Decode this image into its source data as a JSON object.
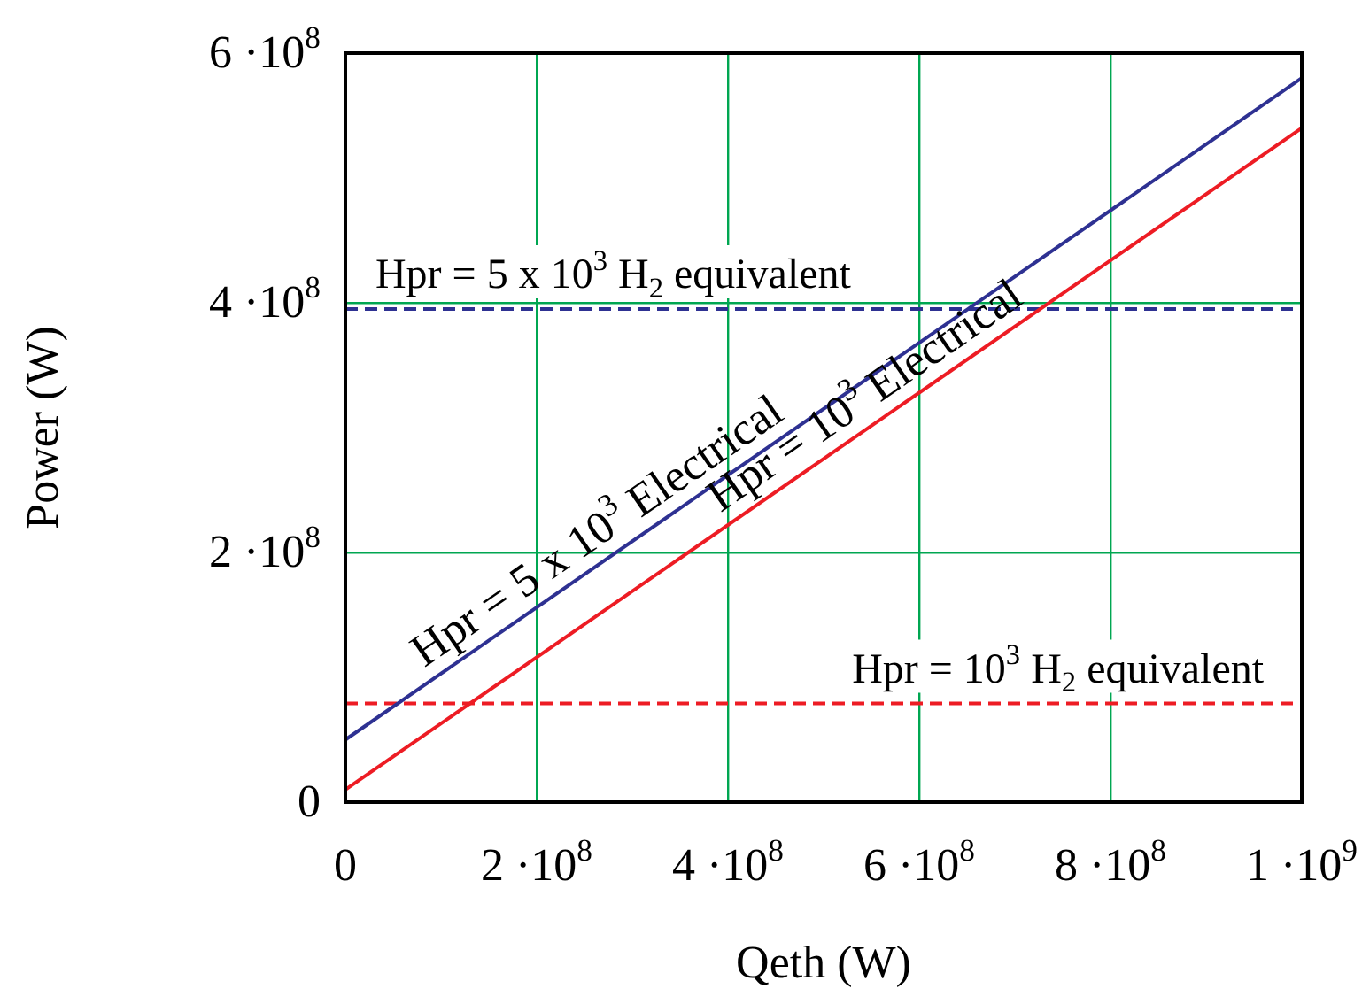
{
  "chart_data": {
    "type": "line",
    "xlabel": "Qeth (W)",
    "ylabel": "Power (W)",
    "series": [
      {
        "color": "#2e3192",
        "values": [
          50000000,
          580000000
        ],
        "line_style": "solid"
      },
      {
        "color": "#ed1c24",
        "values": [
          10000000,
          540000000
        ],
        "line_style": "solid"
      },
      {
        "color": "#2e3192",
        "values": [
          395000000,
          395000000
        ],
        "line_style": "dashed"
      },
      {
        "color": "#ed1c24",
        "values": [
          79000000,
          79000000
        ],
        "line_style": "dashed"
      }
    ],
    "x": [
      0,
      1000000000
    ],
    "xlim": [
      0,
      1000000000
    ],
    "ylim": [
      0,
      600000000
    ],
    "xticks": [
      0,
      {
        "value": 200000000,
        "label": "2 ·10$^{8}$"
      },
      {
        "value": 400000000,
        "label": "4 ·10$^{8}$"
      },
      {
        "value": 600000000,
        "label": "6 ·10$^{8}$"
      },
      {
        "value": 800000000,
        "label": "8 ·10$^{8}$"
      },
      {
        "value": 1000000000,
        "label": "1 ·10$^{9}$"
      }
    ],
    "yticks": [
      0,
      {
        "value": 200000000,
        "label": "2 ·10$^{8}$"
      },
      {
        "value": 400000000,
        "label": "4 ·10$^{8}$"
      },
      {
        "value": 600000000,
        "label": "6 ·10$^{8}$"
      }
    ],
    "annotations": [
      {
        "text": "Hpr = 5 x 10$^{3}$ H$_{2}$ equivalent",
        "x": 280000000,
        "y": 395000000
      },
      {
        "text": "Hpr = 5 x 10$^{3}$ Electrical",
        "x": 280000000,
        "y": 198400000
      },
      {
        "text": "Hpr = 10$^{3}$ Electrical",
        "x": 560000000,
        "y": 306800000
      },
      {
        "text": "Hpr = 10$^{3}$ H$_{2}$ equivalent",
        "x": 745000000,
        "y": 79000000
      }
    ],
    "grid": true,
    "legend": false,
    "marker": "none"
  }
}
